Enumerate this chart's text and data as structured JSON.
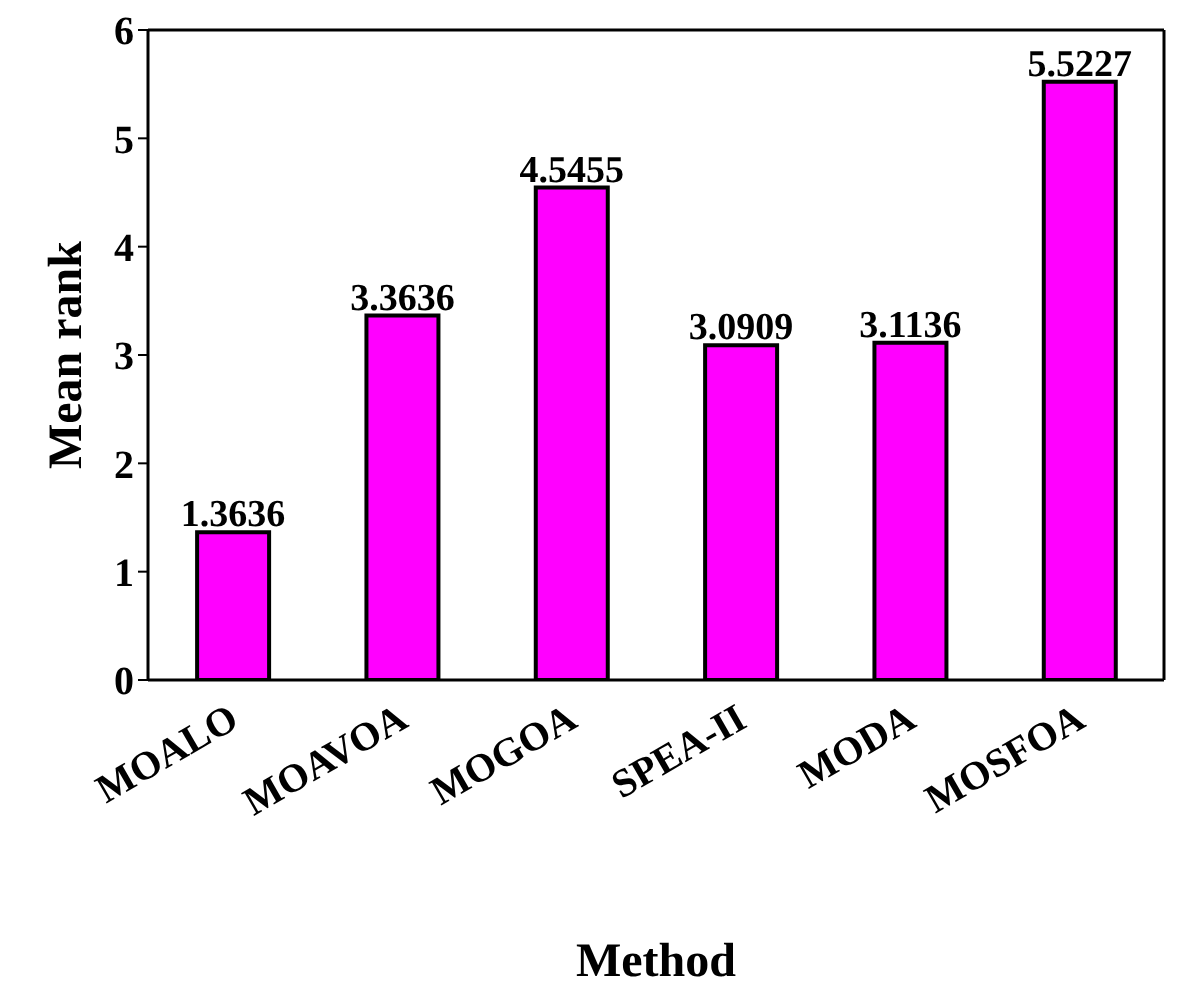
{
  "chart_data": {
    "type": "bar",
    "xlabel": "Method",
    "ylabel": "Mean rank",
    "categories": [
      "MOALO",
      "MOAVOA",
      "MOGOA",
      "SPEA-II",
      "MODA",
      "MOSFOA"
    ],
    "values": [
      1.3636,
      3.3636,
      4.5455,
      3.0909,
      3.1136,
      5.5227
    ],
    "color": "#ff00ff",
    "ylim": [
      0,
      6
    ],
    "yticks": [
      0,
      1,
      2,
      3,
      4,
      5,
      6
    ],
    "data_labels": true,
    "grid": false
  }
}
